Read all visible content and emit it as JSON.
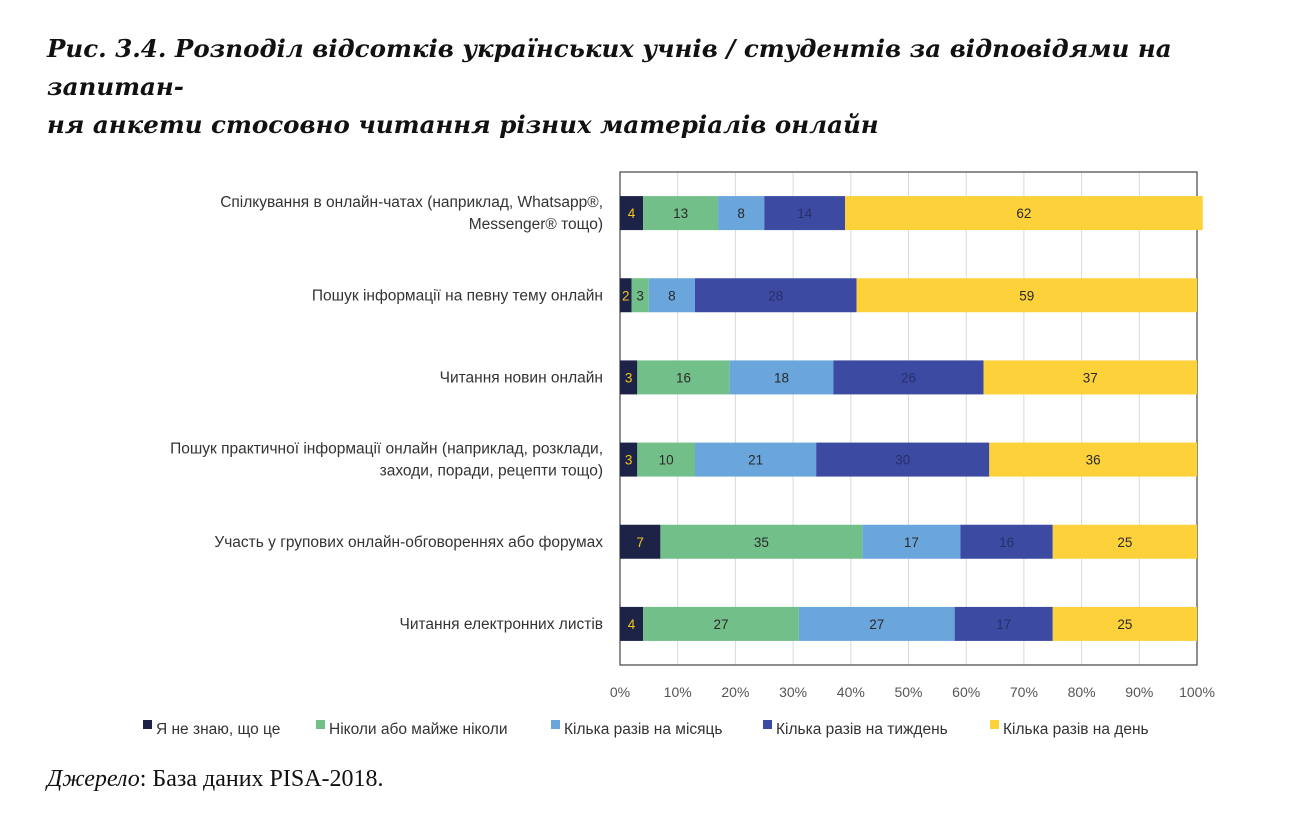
{
  "title": "Рис. 3.4. Розподіл відсотків українських учнів / студентів за відповідями на запитан-\nня анкети стосовно читання різних матеріалів онлайн",
  "source": {
    "label": "Джерело",
    "text": ": База даних PISA-2018."
  },
  "chart_data": {
    "type": "bar",
    "orientation": "horizontal",
    "stacked": true,
    "title": "",
    "xlabel": "",
    "ylabel": "",
    "xlim": [
      0,
      100
    ],
    "x_ticks": [
      "0%",
      "10%",
      "20%",
      "30%",
      "40%",
      "50%",
      "60%",
      "70%",
      "80%",
      "90%",
      "100%"
    ],
    "grid": "vertical",
    "legend_position": "bottom",
    "categories": [
      [
        "Спілкування в онлайн-чатах  (наприклад, Whatsapp®,",
        "Messenger® тощо)"
      ],
      [
        "Пошук інформації  на певну тему онлайн"
      ],
      [
        "Читання новин онлайн"
      ],
      [
        "Пошук практичної інформації онлайн (наприклад, розклади,",
        "заходи, поради, рецепти тощо)"
      ],
      [
        "Участь у групових онлайн-обговореннях  або форумах"
      ],
      [
        "Читання електронних  листів"
      ]
    ],
    "series": [
      {
        "name": "Я не знаю, що це",
        "color": "#1c2347",
        "label_color": "#f5c518",
        "values": [
          4,
          2,
          3,
          3,
          7,
          4
        ]
      },
      {
        "name": "Ніколи або майже ніколи",
        "color": "#73bf8a",
        "label_color": "#2a2a2a",
        "values": [
          13,
          3,
          16,
          10,
          35,
          27
        ]
      },
      {
        "name": "Кілька разів на місяць",
        "color": "#6aa6dc",
        "label_color": "#2a2a2a",
        "values": [
          8,
          8,
          18,
          21,
          17,
          27
        ]
      },
      {
        "name": "Кілька разів на тиждень",
        "color": "#3c4aa2",
        "label_color": "#27306b",
        "values": [
          14,
          28,
          26,
          30,
          16,
          17
        ]
      },
      {
        "name": "Кілька разів на день",
        "color": "#fdd13a",
        "label_color": "#2a2a2a",
        "values": [
          62,
          59,
          37,
          36,
          25,
          25
        ]
      }
    ]
  }
}
